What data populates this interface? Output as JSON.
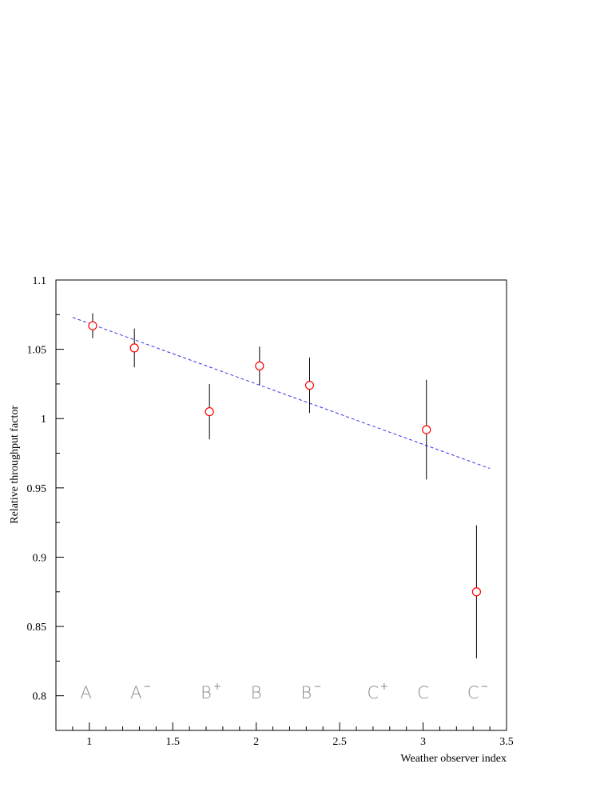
{
  "chart_data": {
    "type": "scatter",
    "title": "",
    "xlabel": "Weather observer index",
    "ylabel": "Relative throughput factor",
    "xlim": [
      0.8,
      3.5
    ],
    "ylim": [
      0.775,
      1.1
    ],
    "x_ticks": [
      {
        "value": 1,
        "label": "1"
      },
      {
        "value": 1.5,
        "label": "1.5"
      },
      {
        "value": 2,
        "label": "2"
      },
      {
        "value": 2.5,
        "label": "2.5"
      },
      {
        "value": 3,
        "label": "3"
      },
      {
        "value": 3.5,
        "label": "3.5"
      }
    ],
    "y_ticks": [
      {
        "value": 0.8,
        "label": "0.8"
      },
      {
        "value": 0.85,
        "label": "0.85"
      },
      {
        "value": 0.9,
        "label": "0.9"
      },
      {
        "value": 0.95,
        "label": "0.95"
      },
      {
        "value": 1.0,
        "label": "1"
      },
      {
        "value": 1.05,
        "label": "1.05"
      },
      {
        "value": 1.1,
        "label": "1.1"
      }
    ],
    "points": [
      {
        "x": 1.02,
        "y": 1.067,
        "err": 0.009
      },
      {
        "x": 1.27,
        "y": 1.051,
        "err": 0.014
      },
      {
        "x": 1.72,
        "y": 1.005,
        "err": 0.02
      },
      {
        "x": 2.02,
        "y": 1.038,
        "err": 0.014
      },
      {
        "x": 2.32,
        "y": 1.024,
        "err": 0.02
      },
      {
        "x": 3.02,
        "y": 0.992,
        "err": 0.036
      },
      {
        "x": 3.32,
        "y": 0.875,
        "err": 0.048
      }
    ],
    "fit_line": {
      "x": [
        0.9,
        3.4
      ],
      "y": [
        1.073,
        0.964
      ],
      "color": "#3333ee",
      "style": "dashed"
    },
    "marker_color": "#ff0000",
    "errorbar_color": "#000000",
    "grade_labels": [
      {
        "x": 0.98,
        "base": "A",
        "sup": ""
      },
      {
        "x": 1.28,
        "base": "A",
        "sup": "−"
      },
      {
        "x": 1.7,
        "base": "B",
        "sup": "+"
      },
      {
        "x": 2.0,
        "base": "B",
        "sup": ""
      },
      {
        "x": 2.3,
        "base": "B",
        "sup": "−"
      },
      {
        "x": 2.7,
        "base": "C",
        "sup": "+"
      },
      {
        "x": 3.0,
        "base": "C",
        "sup": ""
      },
      {
        "x": 3.3,
        "base": "C",
        "sup": "−"
      }
    ],
    "grade_label_y": 0.802,
    "grid": false,
    "legend": "none"
  }
}
